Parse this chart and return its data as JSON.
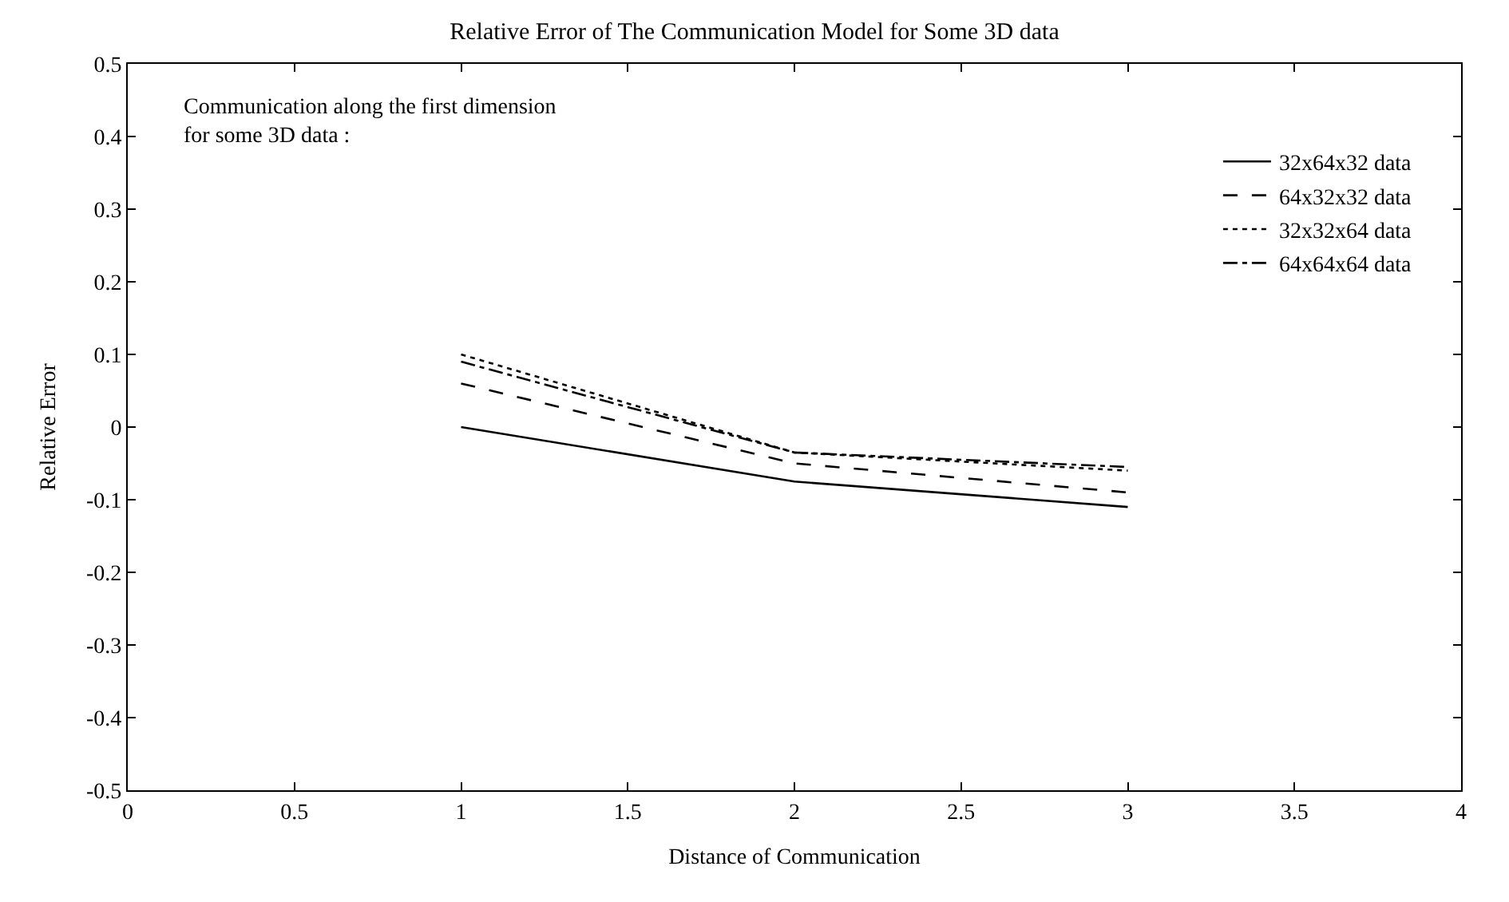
{
  "chart_data": {
    "type": "line",
    "title": "Relative Error of The Communication Model for Some 3D data",
    "xlabel": "Distance of Communication",
    "ylabel": "Relative Error",
    "annotations": [
      "Communication along the first dimension\nfor some 3D data :"
    ],
    "x": [
      1,
      2,
      3
    ],
    "series": [
      {
        "name": "32x64x32 data",
        "color": "#000000",
        "line_style": "solid",
        "values": [
          0.0,
          -0.075,
          -0.11
        ]
      },
      {
        "name": "64x32x32 data",
        "color": "#000000",
        "line_style": "dashed",
        "values": [
          0.06,
          -0.05,
          -0.09
        ]
      },
      {
        "name": "32x32x64 data",
        "color": "#000000",
        "line_style": "dotted",
        "values": [
          0.1,
          -0.035,
          -0.06
        ]
      },
      {
        "name": "64x64x64 data",
        "color": "#000000",
        "line_style": "dashdot",
        "values": [
          0.09,
          -0.035,
          -0.055
        ]
      }
    ],
    "xlim": [
      0,
      4
    ],
    "xticks": [
      0,
      0.5,
      1,
      1.5,
      2,
      2.5,
      3,
      3.5,
      4
    ],
    "ylim": [
      -0.5,
      0.5
    ],
    "yticks": [
      -0.5,
      -0.4,
      -0.3,
      -0.2,
      -0.1,
      0,
      0.1,
      0.2,
      0.3,
      0.4,
      0.5
    ],
    "legend": "top right",
    "marker": "none"
  }
}
